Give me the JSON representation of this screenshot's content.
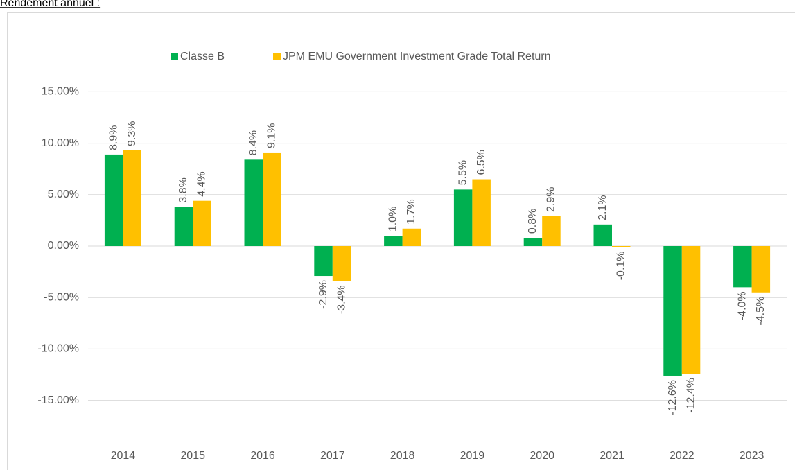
{
  "chart_data": {
    "type": "bar",
    "title": "Rendement annuel :",
    "categories": [
      "2014",
      "2015",
      "2016",
      "2017",
      "2018",
      "2019",
      "2020",
      "2021",
      "2022",
      "2023"
    ],
    "series": [
      {
        "name": "Classe B",
        "color": "#00b050",
        "values": [
          8.9,
          3.8,
          8.4,
          -2.9,
          1.0,
          5.5,
          0.8,
          2.1,
          -12.6,
          -4.0
        ],
        "value_labels": [
          "8.9%",
          "3.8%",
          "8.4%",
          "-2.9%",
          "1.0%",
          "5.5%",
          "0.8%",
          "2.1%",
          "-12.6%",
          "-4.0%"
        ]
      },
      {
        "name": "JPM EMU Government Investment Grade Total Return",
        "color": "#ffc000",
        "values": [
          9.3,
          4.4,
          9.1,
          -3.4,
          1.7,
          6.5,
          2.9,
          -0.1,
          -12.4,
          -4.5
        ],
        "value_labels": [
          "9.3%",
          "4.4%",
          "9.1%",
          "-3.4%",
          "1.7%",
          "6.5%",
          "2.9%",
          "-0.1%",
          "-12.4%",
          "-4.5%"
        ]
      }
    ],
    "ylim": [
      -19,
      15
    ],
    "yticks": [
      {
        "value": 15,
        "label": "15.00%"
      },
      {
        "value": 10,
        "label": "10.00%"
      },
      {
        "value": 5,
        "label": "5.00%"
      },
      {
        "value": 0,
        "label": "0.00%"
      },
      {
        "value": -5,
        "label": "-5.00%"
      },
      {
        "value": -10,
        "label": "-10.00%"
      },
      {
        "value": -15,
        "label": "-15.00%"
      }
    ],
    "grid": true,
    "legend": "top"
  }
}
